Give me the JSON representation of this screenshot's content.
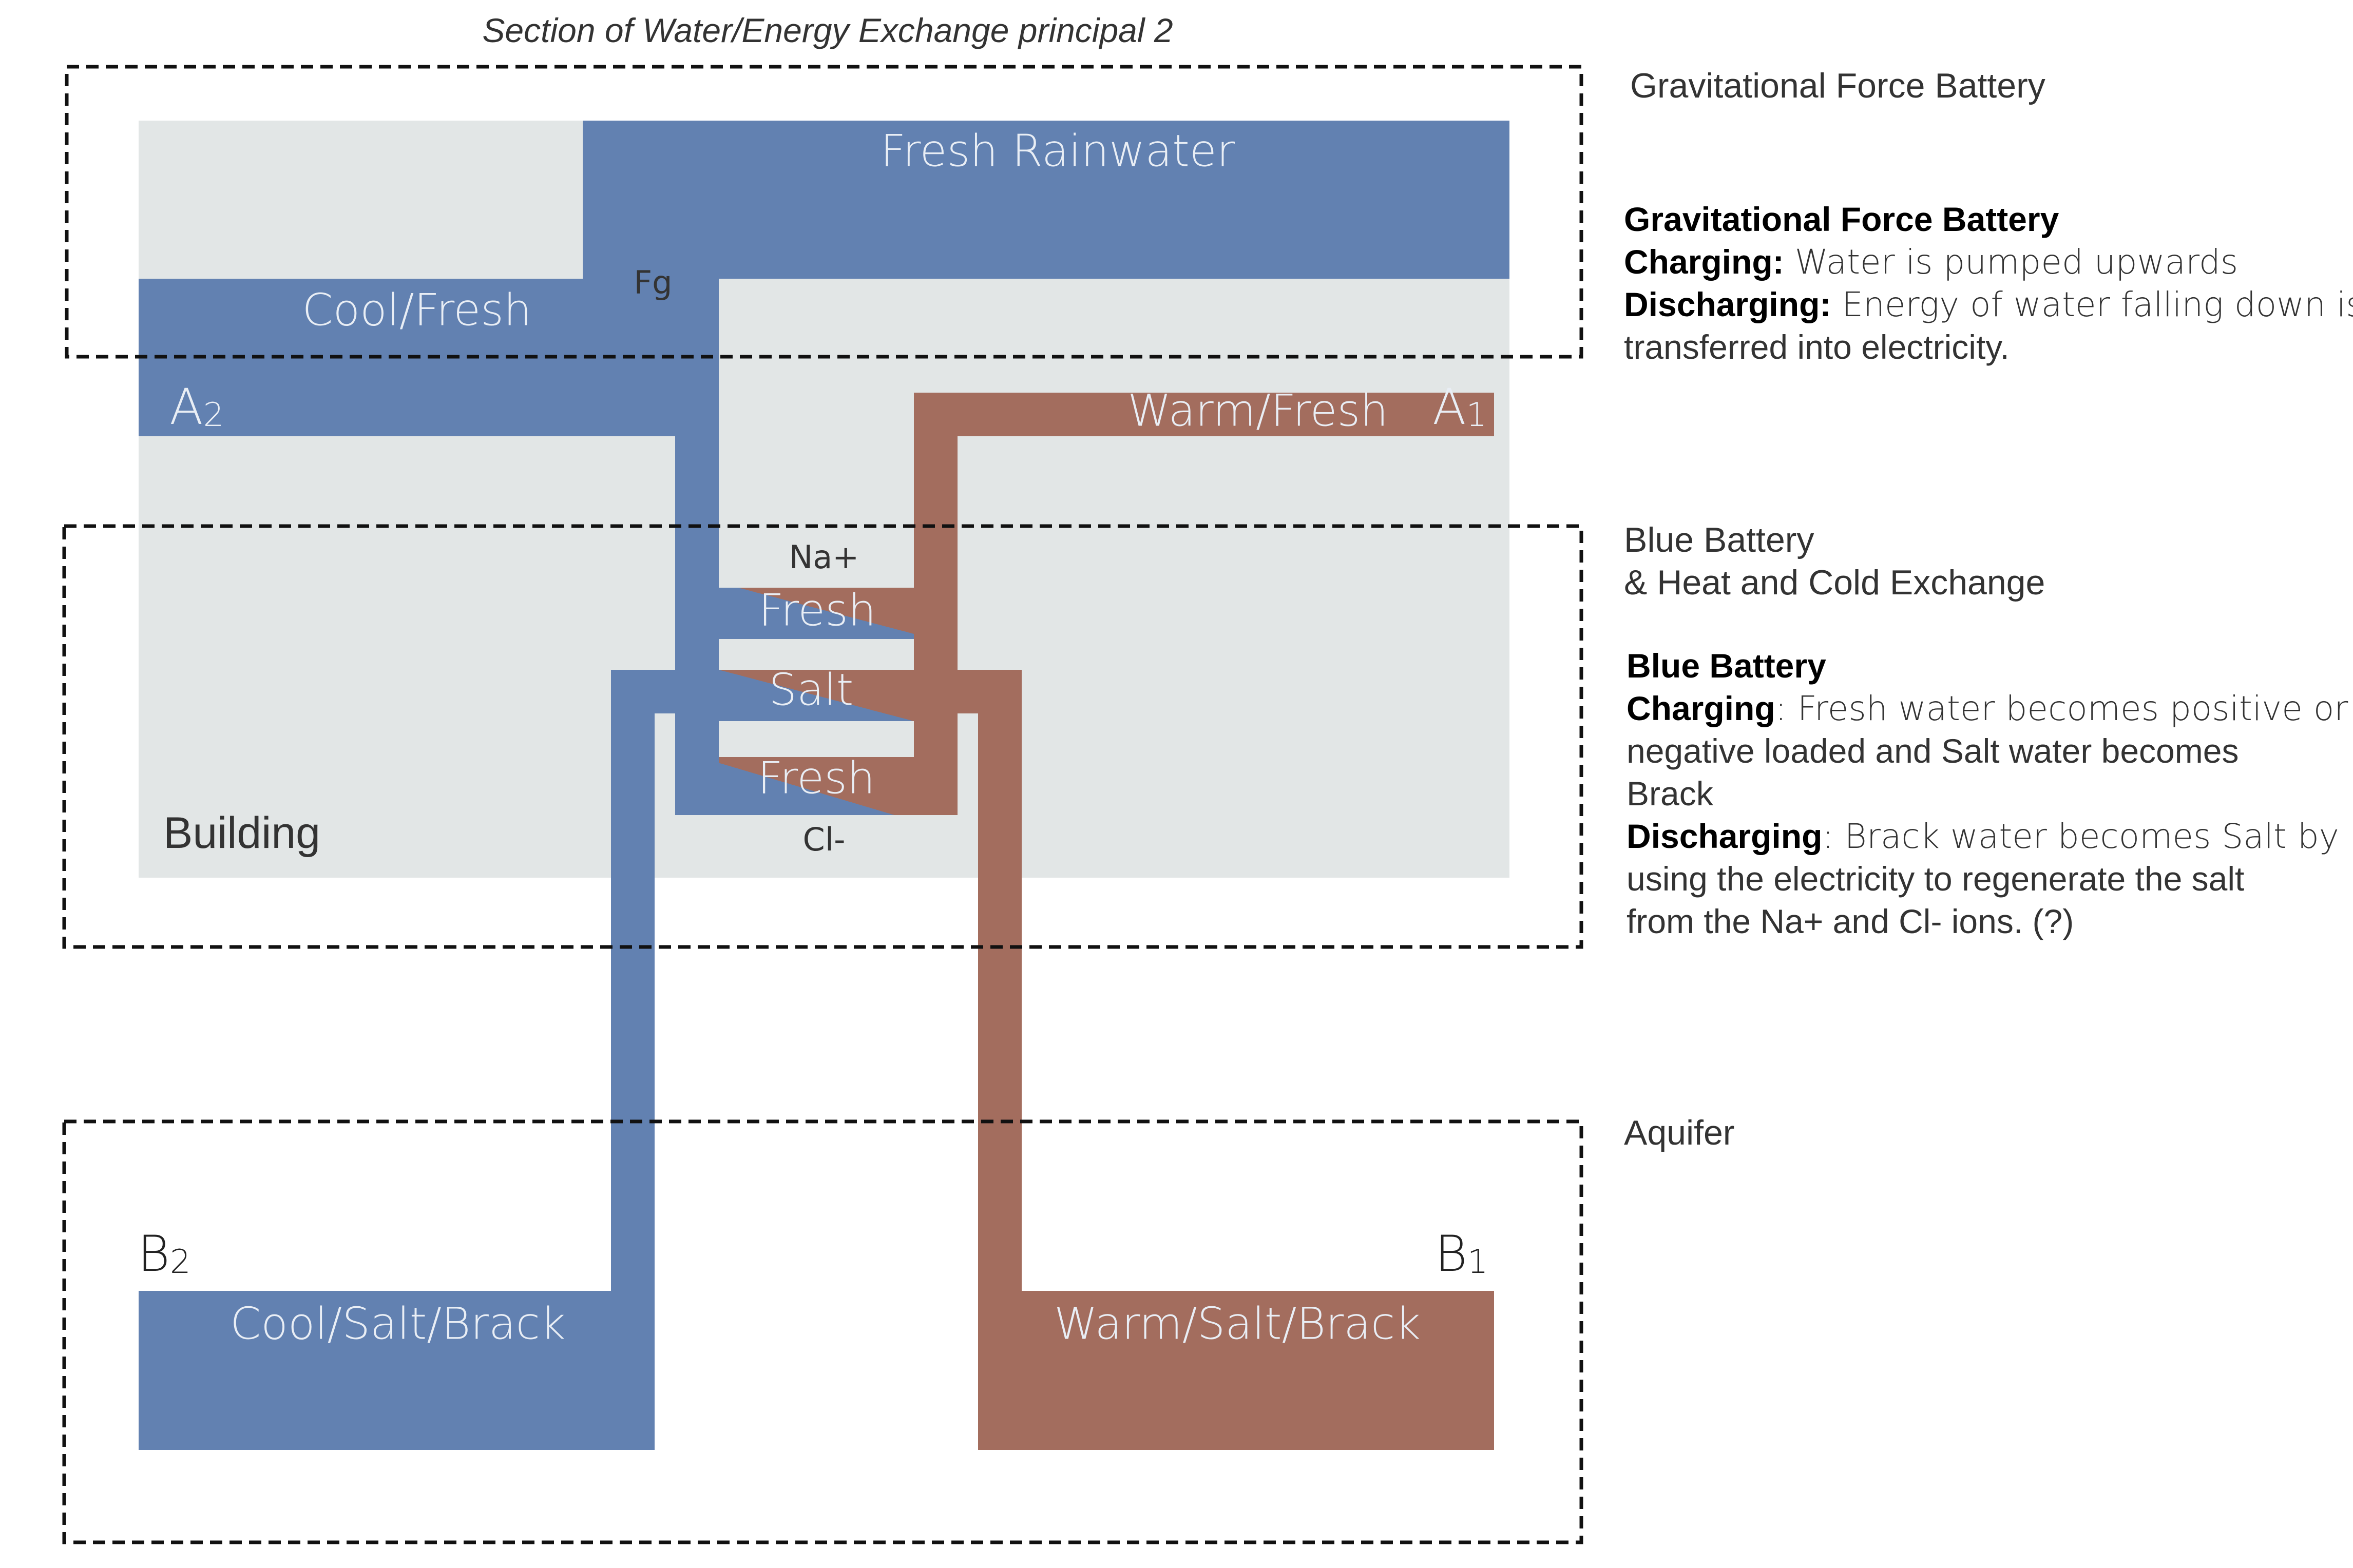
{
  "title": "Section of Water/Energy Exchange principal 2",
  "colors": {
    "building": "#e2e6e6",
    "blue": "#6281b1",
    "red": "#a36d5e",
    "pipe_text": "#e9eef5"
  },
  "pipes": {
    "fresh_rainwater": "Fresh Rainwater",
    "cool_fresh": "Cool/Fresh",
    "warm_fresh": "Warm/Fresh",
    "fresh_top": "Fresh",
    "salt": "Salt",
    "fresh_bottom": "Fresh",
    "cool_salt_brack": "Cool/Salt/Brack",
    "warm_salt_brack": "Warm/Salt/Brack"
  },
  "small_labels": {
    "fg": "Fg",
    "na": "Na+",
    "cl": "Cl-",
    "building": "Building"
  },
  "nodes": {
    "a2": {
      "letter": "A",
      "sub": "2"
    },
    "a1": {
      "letter": "A",
      "sub": "1"
    },
    "b2": {
      "letter": "B",
      "sub": "2"
    },
    "b1": {
      "letter": "B",
      "sub": "1"
    }
  },
  "zones": {
    "gravity": "Gravitational Force Battery",
    "blue_line1": "Blue Battery",
    "blue_line2": "& Heat and Cold Exchange",
    "aquifer": "Aquifer"
  },
  "descriptions": {
    "gravity": {
      "heading": "Gravitational Force Battery",
      "charging_label": "Charging:",
      "charging_text": " Water is pumped upwards",
      "discharging_label": "Discharging:",
      "discharging_text": " Energy of water falling down is",
      "discharging_text2": "transferred into electricity."
    },
    "blue": {
      "heading": "Blue Battery",
      "charging_label": "Charging",
      "charging_text": ": Fresh water becomes positive or",
      "charging_text2": "negative loaded and Salt water becomes",
      "charging_text3": "Brack",
      "discharging_label": "Discharging",
      "discharging_text": ": Brack water becomes Salt by",
      "discharging_text2": "using the electricity to regenerate the salt",
      "discharging_text3": "from the Na+ and Cl- ions. (?)"
    }
  }
}
